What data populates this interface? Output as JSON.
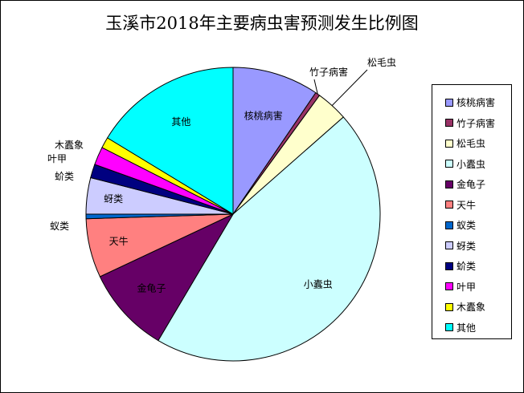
{
  "chart_data": {
    "type": "pie",
    "title": "玉溪市2018年主要病虫害预测发生比例图",
    "categories": [
      "核桃病害",
      "竹子病害",
      "松毛虫",
      "小蠹虫",
      "金龟子",
      "天牛",
      "蚁类",
      "蚜类",
      "蚧类",
      "叶甲",
      "木蠹象",
      "其他"
    ],
    "values": [
      9.5,
      0.5,
      3.5,
      45.0,
      9.5,
      6.5,
      0.5,
      4.0,
      1.5,
      2.0,
      1.2,
      16.3
    ],
    "colors": [
      "#9999ff",
      "#993366",
      "#ffffcc",
      "#ccffff",
      "#660066",
      "#ff8080",
      "#0066cc",
      "#ccccff",
      "#000080",
      "#ff00ff",
      "#ffff00",
      "#00ffff"
    ],
    "legend_position": "right"
  }
}
